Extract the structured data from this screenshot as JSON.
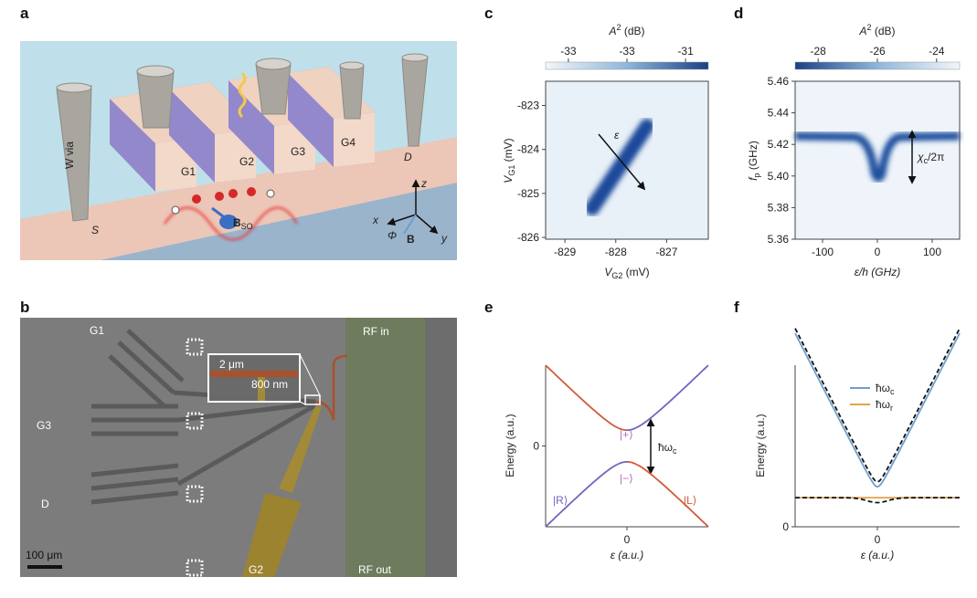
{
  "a": {
    "label": "a",
    "w_via": "W via",
    "gates": [
      "G1",
      "G2",
      "G3",
      "G4"
    ],
    "drain": "D",
    "source": "S",
    "field_so": "B",
    "field_so_sub": "SO",
    "axes": [
      "x",
      "y",
      "z"
    ],
    "angle": "Φ",
    "field": "B"
  },
  "b": {
    "label": "b",
    "gates": [
      "G1",
      "G3",
      "D",
      "G2"
    ],
    "rf_in": "RF in",
    "rf_out": "RF out",
    "inset_width": "2 μm",
    "inset_length": "800 nm",
    "scale_bar": "100 μm"
  },
  "c": {
    "label": "c",
    "colorbar_title": "A",
    "colorbar_power": "2",
    "colorbar_unit": " (dB)",
    "colorbar_ticks": [
      "-33",
      "-33",
      "-31"
    ],
    "ylabel": {
      "symbol": "V",
      "sub": "G1",
      "unit": " (mV)"
    },
    "xlabel": {
      "symbol": "V",
      "sub": "G2",
      "unit": " (mV)"
    },
    "xlim": [
      -829.38,
      -826.18
    ],
    "xticks": [
      -829,
      -828,
      -827
    ],
    "ylim": [
      -826.04,
      -822.45
    ],
    "yticks": [
      -823,
      -824,
      -825,
      -826
    ],
    "arrow_label": "ε"
  },
  "d": {
    "label": "d",
    "colorbar_title": "A",
    "colorbar_power": "2",
    "colorbar_unit": " (dB)",
    "colorbar_ticks": [
      "-28",
      "-26",
      "-24"
    ],
    "ylabel": {
      "symbol": "f",
      "sub": "p",
      "unit": " (GHz)"
    },
    "xlabel": "ε/h (GHz)",
    "xlim": [
      -150,
      150
    ],
    "xticks": [
      -100,
      0,
      100
    ],
    "ylim": [
      5.36,
      5.46
    ],
    "yticks": [
      5.46,
      5.44,
      5.42,
      {
        "value": 5.4,
        "label": "5.40"
      },
      5.38,
      5.36
    ],
    "annotation": {
      "symbol": "χ",
      "sub": "c",
      "rest": "/2π"
    }
  },
  "e": {
    "label": "e",
    "ylabel": "Energy (a.u.)",
    "xlabel": "ε (a.u.)",
    "xlim": [
      -1,
      1
    ],
    "xticks": [
      0
    ],
    "ylim": [
      -1,
      1
    ],
    "yticks": [
      0
    ],
    "states": [
      "|+⟩",
      "|−⟩",
      "|R⟩",
      "|L⟩"
    ],
    "gap": {
      "symbol": "ħω",
      "sub": "c"
    }
  },
  "f": {
    "label": "f",
    "ylabel": "Energy (a.u.)",
    "xlabel": "ε (a.u.)",
    "xlim": [
      -1,
      1
    ],
    "xticks": [
      0
    ],
    "ylim": [
      0,
      1
    ],
    "yticks": [
      0
    ],
    "legend": [
      {
        "symbol": "ħω",
        "sub": "c",
        "color": "#6f9fcf"
      },
      {
        "symbol": "ħω",
        "sub": "r",
        "color": "#e3a24c"
      }
    ]
  }
}
